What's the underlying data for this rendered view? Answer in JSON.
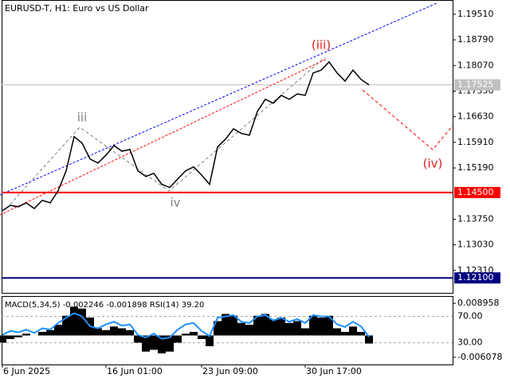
{
  "chart_data": [
    {
      "type": "line",
      "title": "EURUSD-T, H1:  Euro vs US Dollar",
      "categories": [
        "6 Jun 2025",
        null,
        null,
        null,
        null,
        null,
        null,
        null,
        null,
        null,
        null,
        null,
        null,
        "16 Jun 01:00",
        null,
        null,
        null,
        null,
        null,
        null,
        null,
        null,
        null,
        null,
        null,
        "23 Jun 09:00",
        null,
        null,
        null,
        null,
        null,
        null,
        null,
        null,
        null,
        null,
        null,
        null,
        "30 Jun 17:00",
        null,
        null,
        null,
        null,
        null,
        null,
        null,
        null
      ],
      "series": [
        {
          "color": "#000000",
          "values": [
            1.1399,
            1.1414,
            1.141,
            1.1421,
            1.1405,
            1.1428,
            1.1421,
            1.1455,
            1.1511,
            1.1607,
            1.1589,
            1.1544,
            1.1533,
            1.1555,
            1.1582,
            1.1566,
            1.1571,
            1.1511,
            1.1495,
            1.1504,
            1.1473,
            1.1464,
            1.1488,
            1.1511,
            1.1522,
            1.1499,
            1.1473,
            1.1578,
            1.16,
            1.1629,
            1.1616,
            1.1611,
            1.1678,
            1.1712,
            1.1701,
            1.1723,
            1.1712,
            1.1727,
            1.1723,
            1.1786,
            1.1794,
            1.1817,
            1.1786,
            1.1763,
            1.1794,
            1.1768,
            1.17525
          ]
        }
      ],
      "ylim": [
        1.1168,
        1.1991
      ],
      "yticks": [
        {
          "value": 1.1951,
          "label": "1.19510"
        },
        {
          "value": 1.1879,
          "label": "1.18790"
        },
        {
          "value": 1.1807,
          "label": "1.18070"
        },
        {
          "value": 1.1735,
          "label": "1.17350"
        },
        {
          "value": 1.1663,
          "label": "1.16630"
        },
        {
          "value": 1.1591,
          "label": "1.15910"
        },
        {
          "value": 1.1519,
          "label": "1.15190"
        },
        {
          "value": 1.1375,
          "label": "1.13750"
        },
        {
          "value": 1.1303,
          "label": "1.13030"
        },
        {
          "value": 1.1231,
          "label": "1.12310"
        }
      ],
      "levels": [
        {
          "value": 1.17525,
          "label": "1.17525",
          "color": "#c0c0c0"
        },
        {
          "value": 1.145,
          "label": "1.14500",
          "color": "#ff0000"
        },
        {
          "value": 1.121,
          "label": "1.12100",
          "color": "#000080"
        }
      ],
      "annotations": [
        {
          "text": "iii",
          "color": "#808080"
        },
        {
          "text": "iv",
          "color": "#808080"
        },
        {
          "text": "(iii)",
          "color": "#e02020"
        },
        {
          "text": "(iv)",
          "color": "#e02020"
        }
      ]
    },
    {
      "type": "indicator",
      "title": "MACD(5,34,5) -0.002246 -0.001898 RSI(14) 39.20",
      "series": [
        {
          "color": "#000000",
          "values": [
            -0.002,
            -0.001,
            -0.0005,
            0.0005,
            0.0,
            0.001,
            0.0015,
            0.003,
            0.0055,
            0.008,
            0.0075,
            0.005,
            0.002,
            0.0015,
            0.0025,
            0.002,
            0.0015,
            -0.002,
            -0.0045,
            -0.004,
            -0.005,
            -0.0045,
            -0.002,
            0.0005,
            0.001,
            -0.001,
            -0.003,
            0.004,
            0.006,
            0.0055,
            0.0035,
            0.003,
            0.0055,
            0.006,
            0.0045,
            0.005,
            0.0035,
            0.004,
            0.002,
            0.0055,
            0.005,
            0.0055,
            0.002,
            0.001,
            0.0025,
            0.001,
            -0.002246
          ]
        },
        {
          "color": "#1e90ff",
          "axis": "y2",
          "values": [
            42,
            48,
            46,
            50,
            45,
            52,
            50,
            60,
            68,
            75,
            70,
            55,
            52,
            58,
            62,
            56,
            58,
            42,
            38,
            44,
            36,
            38,
            50,
            58,
            60,
            48,
            40,
            68,
            70,
            72,
            62,
            60,
            70,
            72,
            64,
            68,
            62,
            66,
            60,
            72,
            70,
            70,
            58,
            54,
            62,
            55,
            39.2
          ]
        }
      ],
      "ylim": [
        -0.0081,
        0.011
      ],
      "yticks": [
        0.008958,
        -0.006078
      ],
      "y2lim": [
        -3,
        101
      ],
      "y2ticks": [
        {
          "value": 70,
          "label": "70.00"
        },
        {
          "value": 30,
          "label": "30.00"
        }
      ]
    }
  ]
}
